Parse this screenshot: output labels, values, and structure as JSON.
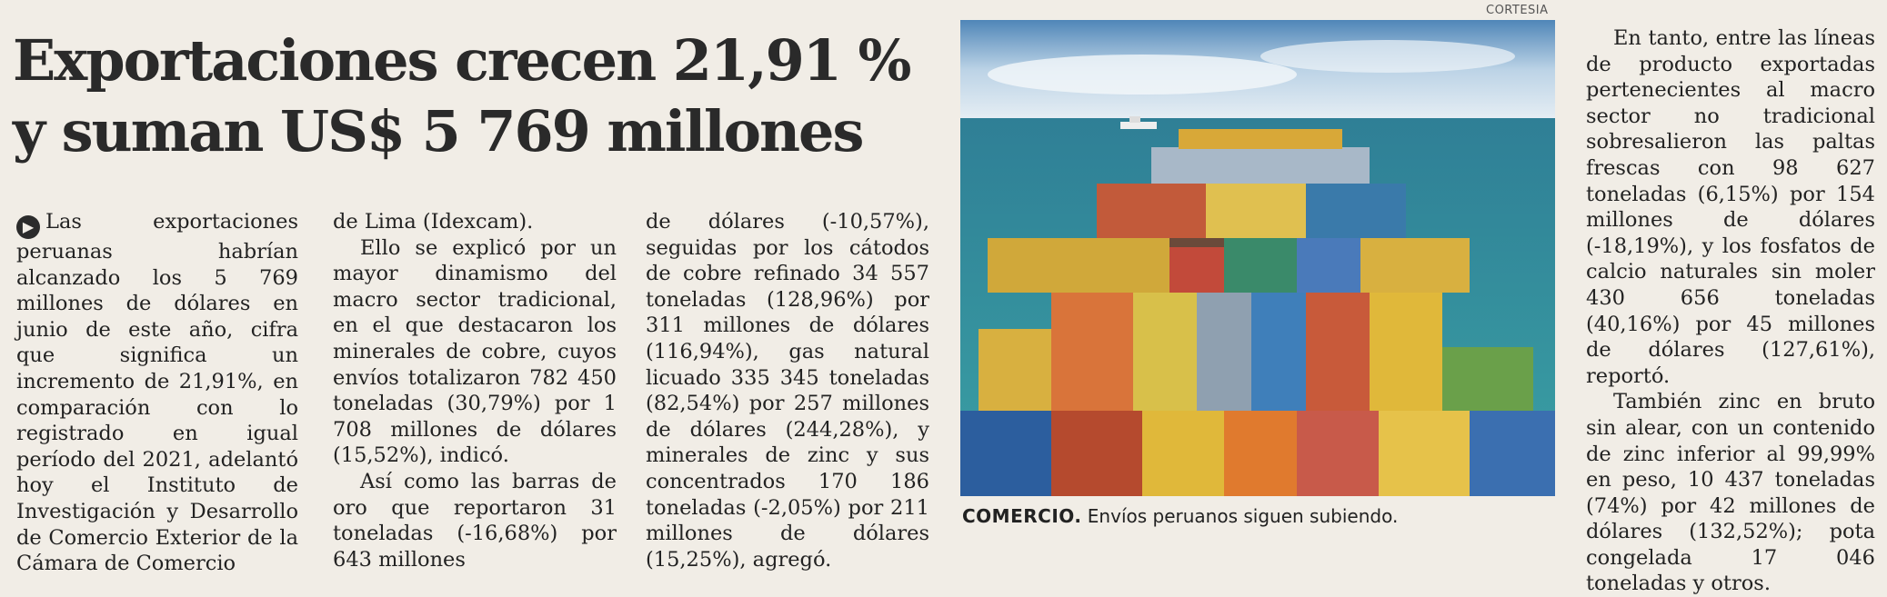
{
  "article": {
    "headline_line1": "Exportaciones crecen 21,91 %",
    "headline_line2": "y suman US$ 5 769 millones",
    "col1": "Las exportaciones peruanas habrían alcanzado los 5 769 millones de dólares en junio de este año, cifra que significa un incremento de 21,91%, en comparación con lo registrado en igual período del 2021, adelantó hoy el Instituto de Investigación y Desarrollo de Comercio Exterior de la Cámara de Comercio",
    "col2_p1": "de Lima (Idexcam).",
    "col2_p2": "Ello se explicó por un mayor dinamismo del macro sector tradicional, en el que destacaron los minerales de cobre, cuyos envíos totalizaron 782 450 toneladas (30,79%) por 1 708 millones de dólares (15,52%), indicó.",
    "col2_p3": "Así como las barras de oro que reportaron 31 toneladas (-16,68%) por 643 millones",
    "col3": "de dólares (-10,57%), seguidas por los cátodos de cobre refinado 34 557 toneladas (128,96%) por 311 millones de dólares (116,94%), gas natural licuado 335 345 toneladas (82,54%) por 257 millones de dólares (244,28%), y minerales de zinc y sus concentrados 170 186 toneladas (-2,05%) por 211 millones de dólares (15,25%), agregó.",
    "col4_p1": "En tanto, entre las líneas de producto exportadas pertenecientes al macro sector no tradicional sobresalieron las paltas frescas con 98 627 toneladas (6,15%) por 154 millones de dólares (-18,19%), y los fosfatos de calcio naturales sin moler 430 656 toneladas (40,16%) por 45 millones de dólares (127,61%), reportó.",
    "col4_p2": "También zinc en bruto sin alear, con un contenido de zinc inferior al 99,99% en peso, 10 437 toneladas (74%) por 42 millones de dólares (132,52%); pota congelada 17 046 toneladas y otros."
  },
  "photo": {
    "credit": "CORTESIA",
    "caption_label": "COMERCIO.",
    "caption_text": " Envíos peruanos siguen subiendo."
  },
  "colors": {
    "paper": "#f1ede6",
    "ink": "#222222",
    "sea": "#2f8a96"
  }
}
